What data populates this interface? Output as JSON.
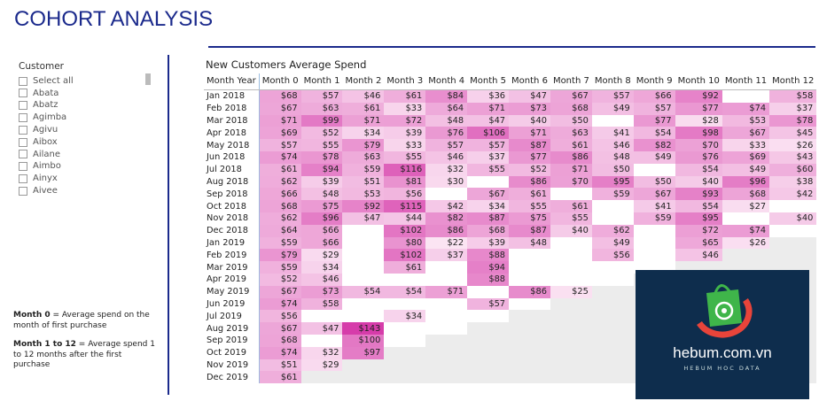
{
  "header": {
    "title": "COHORT ANALYSIS"
  },
  "slicer": {
    "title": "Customer",
    "items": [
      "Select all",
      "Abata",
      "Abatz",
      "Agimba",
      "Agivu",
      "Aibox",
      "Ailane",
      "Aimbo",
      "Ainyx",
      "Aivee"
    ]
  },
  "notes": [
    {
      "term": "Month 0",
      "text": " = Average spend on the month of first purchase"
    },
    {
      "term": "Month 1 to 12",
      "text": " = Average spend 1 to 12 months after the first purchase"
    }
  ],
  "table": {
    "title": "New Customers Average Spend",
    "header": [
      "Month Year",
      "Month 0",
      "Month 1",
      "Month 2",
      "Month 3",
      "Month 4",
      "Month 5",
      "Month 6",
      "Month 7",
      "Month 8",
      "Month 9",
      "Month 10",
      "Month 11",
      "Month 12"
    ],
    "rows": [
      {
        "label": "Jan 2018",
        "cells": [
          "$68",
          "$57",
          "$46",
          "$61",
          "$84",
          "$36",
          "$47",
          "$67",
          "$57",
          "$66",
          "$92",
          null,
          "$58"
        ]
      },
      {
        "label": "Feb 2018",
        "cells": [
          "$67",
          "$63",
          "$61",
          "$33",
          "$64",
          "$71",
          "$73",
          "$68",
          "$49",
          "$57",
          "$77",
          "$74",
          "$37"
        ]
      },
      {
        "label": "Mar 2018",
        "cells": [
          "$71",
          "$99",
          "$71",
          "$72",
          "$48",
          "$47",
          "$40",
          "$50",
          null,
          "$77",
          "$28",
          "$53",
          "$78"
        ]
      },
      {
        "label": "Apr 2018",
        "cells": [
          "$69",
          "$52",
          "$34",
          "$39",
          "$76",
          "$106",
          "$71",
          "$63",
          "$41",
          "$54",
          "$98",
          "$67",
          "$45"
        ]
      },
      {
        "label": "May 2018",
        "cells": [
          "$57",
          "$55",
          "$79",
          "$33",
          "$57",
          "$57",
          "$87",
          "$61",
          "$46",
          "$82",
          "$70",
          "$33",
          "$26"
        ]
      },
      {
        "label": "Jun 2018",
        "cells": [
          "$74",
          "$78",
          "$63",
          "$55",
          "$46",
          "$37",
          "$77",
          "$86",
          "$48",
          "$49",
          "$76",
          "$69",
          "$43"
        ]
      },
      {
        "label": "Jul 2018",
        "cells": [
          "$61",
          "$94",
          "$59",
          "$116",
          "$32",
          "$55",
          "$52",
          "$71",
          "$50",
          null,
          "$54",
          "$49",
          "$60"
        ]
      },
      {
        "label": "Aug 2018",
        "cells": [
          "$62",
          "$39",
          "$51",
          "$81",
          "$30",
          null,
          "$86",
          "$70",
          "$95",
          "$50",
          "$40",
          "$96",
          "$38"
        ]
      },
      {
        "label": "Sep 2018",
        "cells": [
          "$66",
          "$48",
          "$53",
          "$56",
          null,
          "$67",
          "$61",
          null,
          "$59",
          "$67",
          "$93",
          "$68",
          "$42"
        ]
      },
      {
        "label": "Oct 2018",
        "cells": [
          "$68",
          "$75",
          "$92",
          "$115",
          "$42",
          "$34",
          "$55",
          "$61",
          null,
          "$41",
          "$54",
          "$27",
          null
        ]
      },
      {
        "label": "Nov 2018",
        "cells": [
          "$62",
          "$96",
          "$47",
          "$44",
          "$82",
          "$87",
          "$75",
          "$55",
          null,
          "$59",
          "$95",
          null,
          "$40"
        ]
      },
      {
        "label": "Dec 2018",
        "cells": [
          "$64",
          "$66",
          null,
          "$102",
          "$86",
          "$68",
          "$87",
          "$40",
          "$62",
          null,
          "$72",
          "$74",
          null
        ]
      },
      {
        "label": "Jan 2019",
        "cells": [
          "$59",
          "$66",
          null,
          "$80",
          "$22",
          "$39",
          "$48",
          null,
          "$49",
          null,
          "$65",
          "$26",
          null
        ]
      },
      {
        "label": "Feb 2019",
        "cells": [
          "$79",
          "$29",
          null,
          "$102",
          "$37",
          "$88",
          null,
          null,
          "$56",
          null,
          "$46",
          null,
          null
        ]
      },
      {
        "label": "Mar 2019",
        "cells": [
          "$59",
          "$34",
          null,
          "$61",
          null,
          "$94",
          null,
          null,
          null,
          null,
          null,
          null,
          null
        ]
      },
      {
        "label": "Apr 2019",
        "cells": [
          "$52",
          "$46",
          null,
          null,
          null,
          "$88",
          null,
          null,
          null,
          null,
          null,
          null,
          null
        ]
      },
      {
        "label": "May 2019",
        "cells": [
          "$67",
          "$73",
          "$54",
          "$54",
          "$71",
          null,
          "$86",
          "$25",
          null,
          null,
          null,
          null,
          null
        ]
      },
      {
        "label": "Jun 2019",
        "cells": [
          "$74",
          "$58",
          null,
          null,
          null,
          "$57",
          null,
          null,
          null,
          null,
          null,
          null,
          null
        ]
      },
      {
        "label": "Jul 2019",
        "cells": [
          "$56",
          null,
          null,
          "$34",
          null,
          null,
          null,
          null,
          null,
          null,
          null,
          null,
          null
        ]
      },
      {
        "label": "Aug 2019",
        "cells": [
          "$67",
          "$47",
          "$143",
          null,
          null,
          null,
          null,
          null,
          null,
          null,
          null,
          null,
          null
        ]
      },
      {
        "label": "Sep 2019",
        "cells": [
          "$68",
          null,
          "$100",
          null,
          null,
          null,
          null,
          null,
          null,
          null,
          null,
          null,
          null
        ]
      },
      {
        "label": "Oct 2019",
        "cells": [
          "$74",
          "$32",
          "$97",
          null,
          null,
          null,
          null,
          null,
          null,
          null,
          null,
          null,
          null
        ]
      },
      {
        "label": "Nov 2019",
        "cells": [
          "$51",
          "$29",
          null,
          null,
          null,
          null,
          null,
          null,
          null,
          null,
          null,
          null,
          null
        ]
      },
      {
        "label": "Dec 2019",
        "cells": [
          "$61",
          null,
          null,
          null,
          null,
          null,
          null,
          null,
          null,
          null,
          null,
          null,
          null
        ]
      }
    ]
  },
  "logo": {
    "name": "hebum.com.vn",
    "tagline": "HEBUM HOC DATA"
  }
}
